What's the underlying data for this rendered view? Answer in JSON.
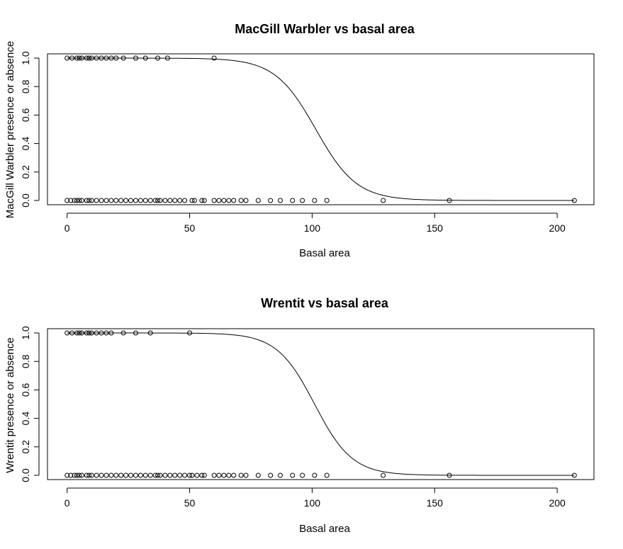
{
  "chart_data": [
    {
      "type": "scatter",
      "title": "MacGill Warbler vs basal area",
      "xlabel": "Basal area",
      "ylabel": "MacGill Warbler presence or absence",
      "xlim": [
        -8,
        215
      ],
      "ylim": [
        -0.03,
        1.03
      ],
      "x_ticks": [
        "0",
        "50",
        "100",
        "150",
        "200"
      ],
      "y_ticks": [
        "0.0",
        "0.2",
        "0.4",
        "0.6",
        "0.8",
        "1.0"
      ],
      "series": [
        {
          "y": 1,
          "x": [
            0,
            2,
            4,
            5,
            6,
            8,
            9,
            10,
            12,
            14,
            16,
            18,
            20,
            23,
            28,
            32,
            37,
            41,
            60
          ]
        },
        {
          "y": 0,
          "x": [
            0,
            1.5,
            3,
            4,
            5,
            6,
            8,
            9,
            10,
            12,
            14,
            16,
            18,
            20,
            22,
            24,
            26,
            28,
            30,
            32,
            34,
            36,
            37,
            38,
            40,
            42,
            44,
            46,
            48,
            51,
            52,
            55,
            56,
            60,
            62,
            64,
            66,
            68,
            71,
            73,
            78,
            83,
            87,
            92,
            96,
            101,
            106,
            129,
            156,
            207
          ]
        }
      ],
      "fit_curve": {
        "model": "logistic",
        "midpoint": 101.5,
        "slope": 0.12
      }
    },
    {
      "type": "scatter",
      "title": "Wrentit vs basal area",
      "xlabel": "Basal area",
      "ylabel": "Wrentit presence or absence",
      "xlim": [
        -8,
        215
      ],
      "ylim": [
        -0.03,
        1.03
      ],
      "x_ticks": [
        "0",
        "50",
        "100",
        "150",
        "200"
      ],
      "y_ticks": [
        "0.0",
        "0.2",
        "0.4",
        "0.6",
        "0.8",
        "1.0"
      ],
      "series": [
        {
          "y": 1,
          "x": [
            0,
            2,
            4,
            5,
            6,
            8,
            9,
            10,
            12,
            14,
            16,
            18,
            23,
            28,
            34,
            50
          ]
        },
        {
          "y": 0,
          "x": [
            0,
            1.5,
            3,
            4,
            5,
            6,
            8,
            9,
            10,
            12,
            14,
            16,
            18,
            20,
            22,
            24,
            26,
            28,
            30,
            32,
            34,
            36,
            37,
            38,
            40,
            42,
            44,
            46,
            48,
            50,
            51,
            53,
            55,
            56,
            60,
            62,
            64,
            66,
            68,
            71,
            73,
            78,
            83,
            87,
            92,
            96,
            101,
            106,
            129,
            156,
            207
          ]
        }
      ],
      "fit_curve": {
        "model": "logistic",
        "midpoint": 101,
        "slope": 0.13
      }
    }
  ]
}
